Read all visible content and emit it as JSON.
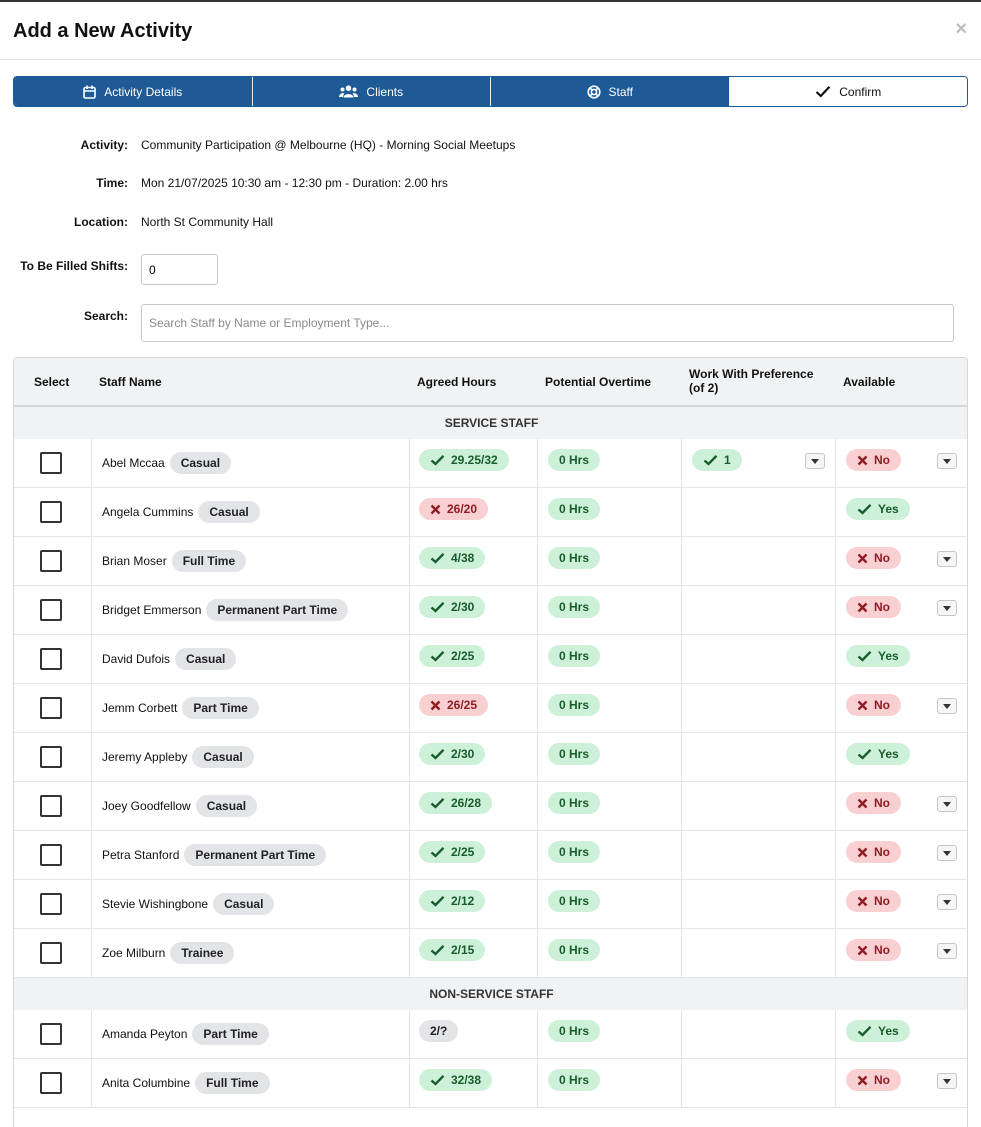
{
  "modal": {
    "title": "Add a New Activity",
    "close_label": "×"
  },
  "steps": [
    {
      "label": "Activity Details",
      "icon": "calendar-icon",
      "active": true
    },
    {
      "label": "Clients",
      "icon": "users-icon",
      "active": true
    },
    {
      "label": "Staff",
      "icon": "lifebuoy-icon",
      "active": true
    },
    {
      "label": "Confirm",
      "icon": "check-icon",
      "active": false
    }
  ],
  "info": {
    "activity_label": "Activity:",
    "activity_value": "Community Participation @ Melbourne (HQ) - Morning Social Meetups",
    "time_label": "Time:",
    "time_value": "Mon 21/07/2025 10:30 am - 12:30 pm - Duration: 2.00 hrs",
    "location_label": "Location:",
    "location_value": "North St Community Hall",
    "shifts_label": "To Be Filled Shifts:",
    "shifts_value": "0",
    "search_label": "Search:",
    "search_placeholder": "Search Staff by Name or Employment Type..."
  },
  "table": {
    "headers": {
      "select": "Select",
      "staff_name": "Staff Name",
      "agreed_hours": "Agreed Hours",
      "potential_overtime": "Potential Overtime",
      "work_with_preference": "Work With Preference (of 2)",
      "available": "Available"
    },
    "groups": [
      {
        "title": "SERVICE STAFF",
        "rows": [
          {
            "name": "Abel Mccaa",
            "type": "Casual",
            "hours": "29.25/32",
            "hours_status": "ok",
            "overtime": "0 Hrs",
            "preference": "1",
            "available": "No",
            "has_dropdown": true
          },
          {
            "name": "Angela Cummins",
            "type": "Casual",
            "hours": "26/20",
            "hours_status": "over",
            "overtime": "0 Hrs",
            "preference": "",
            "available": "Yes",
            "has_dropdown": false
          },
          {
            "name": "Brian Moser",
            "type": "Full Time",
            "hours": "4/38",
            "hours_status": "ok",
            "overtime": "0 Hrs",
            "preference": "",
            "available": "No",
            "has_dropdown": true
          },
          {
            "name": "Bridget Emmerson",
            "type": "Permanent Part Time",
            "hours": "2/30",
            "hours_status": "ok",
            "overtime": "0 Hrs",
            "preference": "",
            "available": "No",
            "has_dropdown": true
          },
          {
            "name": "David Dufois",
            "type": "Casual",
            "hours": "2/25",
            "hours_status": "ok",
            "overtime": "0 Hrs",
            "preference": "",
            "available": "Yes",
            "has_dropdown": false
          },
          {
            "name": "Jemm Corbett",
            "type": "Part Time",
            "hours": "26/25",
            "hours_status": "over",
            "overtime": "0 Hrs",
            "preference": "",
            "available": "No",
            "has_dropdown": true
          },
          {
            "name": "Jeremy Appleby",
            "type": "Casual",
            "hours": "2/30",
            "hours_status": "ok",
            "overtime": "0 Hrs",
            "preference": "",
            "available": "Yes",
            "has_dropdown": false
          },
          {
            "name": "Joey Goodfellow",
            "type": "Casual",
            "hours": "26/28",
            "hours_status": "ok",
            "overtime": "0 Hrs",
            "preference": "",
            "available": "No",
            "has_dropdown": true
          },
          {
            "name": "Petra Stanford",
            "type": "Permanent Part Time",
            "hours": "2/25",
            "hours_status": "ok",
            "overtime": "0 Hrs",
            "preference": "",
            "available": "No",
            "has_dropdown": true
          },
          {
            "name": "Stevie Wishingbone",
            "type": "Casual",
            "hours": "2/12",
            "hours_status": "ok",
            "overtime": "0 Hrs",
            "preference": "",
            "available": "No",
            "has_dropdown": true
          },
          {
            "name": "Zoe Milburn",
            "type": "Trainee",
            "hours": "2/15",
            "hours_status": "ok",
            "overtime": "0 Hrs",
            "preference": "",
            "available": "No",
            "has_dropdown": true
          }
        ]
      },
      {
        "title": "NON-SERVICE STAFF",
        "rows": [
          {
            "name": "Amanda Peyton",
            "type": "Part Time",
            "hours": "2/?",
            "hours_status": "unknown",
            "overtime": "0 Hrs",
            "preference": "",
            "available": "Yes",
            "has_dropdown": false
          },
          {
            "name": "Anita Columbine",
            "type": "Full Time",
            "hours": "32/38",
            "hours_status": "ok",
            "overtime": "0 Hrs",
            "preference": "",
            "available": "No",
            "has_dropdown": true
          }
        ]
      }
    ]
  },
  "colors": {
    "primary": "#1e5a96",
    "ok_bg": "#cdf1d8",
    "ok_fg": "#195c2c",
    "bad_bg": "#f8d0d2",
    "bad_fg": "#8e1d24"
  }
}
